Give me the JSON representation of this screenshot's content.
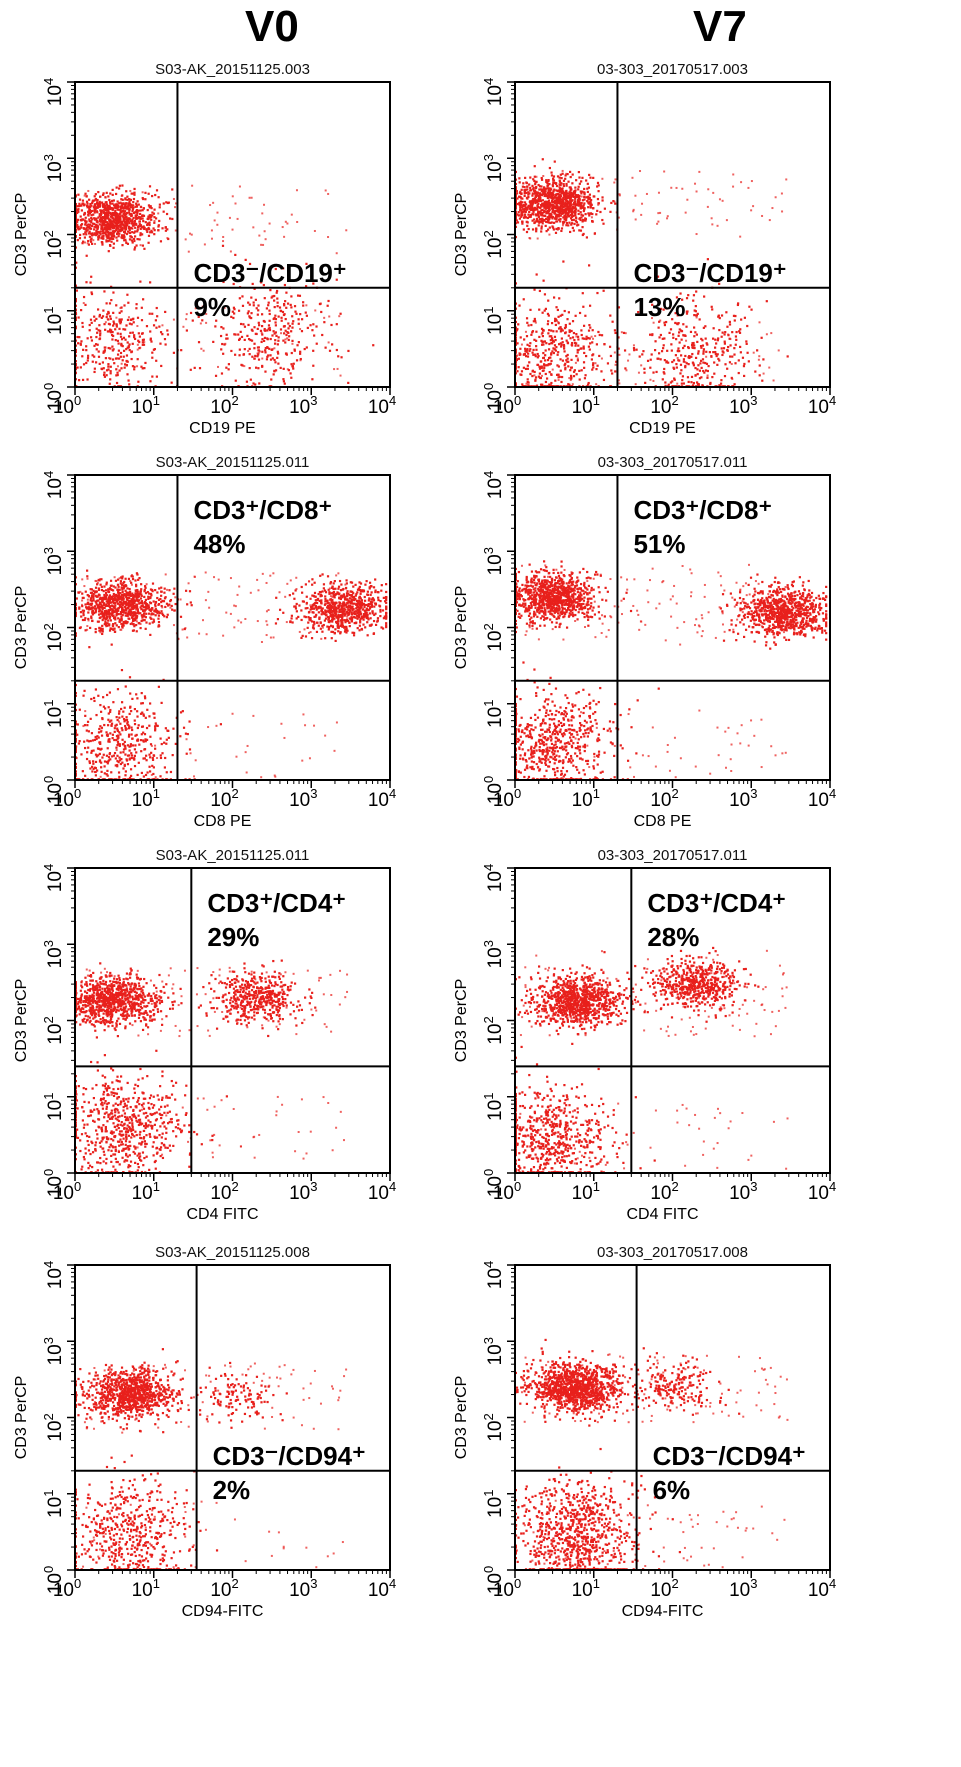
{
  "columns": [
    "V0",
    "V7"
  ],
  "chart_data": [
    {
      "type": "scatter",
      "column": "V0",
      "row": 1,
      "title": "S03-AK_20151125.003",
      "xlabel": "CD19 PE",
      "ylabel": "CD3 PerCP",
      "xscale": "log",
      "yscale": "log",
      "xlim": [
        1,
        10000
      ],
      "ylim": [
        1,
        10000
      ],
      "gate": [
        20,
        20
      ],
      "gate_label": "CD3⁻/CD19⁺",
      "percent": "9%",
      "quadrant": "lower-right",
      "populations": [
        {
          "quadrant": "upper-left",
          "x_center": 3,
          "y_center": 160,
          "events": 900
        },
        {
          "quadrant": "lower-right",
          "x_center": 300,
          "y_center": 5,
          "events": 330
        },
        {
          "quadrant": "lower-left",
          "x_center": 3,
          "y_center": 4,
          "events": 330
        }
      ],
      "color": "#e8201c"
    },
    {
      "type": "scatter",
      "column": "V7",
      "row": 1,
      "title": "03-303_20170517.003",
      "xlabel": "CD19 PE",
      "ylabel": "CD3 PerCP",
      "xscale": "log",
      "yscale": "log",
      "xlim": [
        1,
        10000
      ],
      "ylim": [
        1,
        10000
      ],
      "gate": [
        20,
        20
      ],
      "gate_label": "CD3⁻/CD19⁺",
      "percent": "13%",
      "quadrant": "lower-right",
      "populations": [
        {
          "quadrant": "upper-left",
          "x_center": 3,
          "y_center": 250,
          "events": 1000
        },
        {
          "quadrant": "lower-right",
          "x_center": 200,
          "y_center": 3,
          "events": 350
        },
        {
          "quadrant": "lower-left",
          "x_center": 3,
          "y_center": 3,
          "events": 450
        }
      ],
      "color": "#e8201c"
    },
    {
      "type": "scatter",
      "column": "V0",
      "row": 2,
      "title": "S03-AK_20151125.011",
      "xlabel": "CD8 PE",
      "ylabel": "CD3 PerCP",
      "xscale": "log",
      "yscale": "log",
      "xlim": [
        1,
        10000
      ],
      "ylim": [
        1,
        10000
      ],
      "gate": [
        20,
        20
      ],
      "gate_label": "CD3⁺/CD8⁺",
      "percent": "48%",
      "quadrant": "upper-right",
      "populations": [
        {
          "quadrant": "upper-left",
          "x_center": 4,
          "y_center": 200,
          "events": 800
        },
        {
          "quadrant": "upper-right",
          "x_center": 2500,
          "y_center": 180,
          "events": 700
        },
        {
          "quadrant": "lower-left",
          "x_center": 4,
          "y_center": 3,
          "events": 450
        }
      ],
      "color": "#e8201c"
    },
    {
      "type": "scatter",
      "column": "V7",
      "row": 2,
      "title": "03-303_20170517.011",
      "xlabel": "CD8 PE",
      "ylabel": "CD3 PerCP",
      "xscale": "log",
      "yscale": "log",
      "xlim": [
        1,
        10000
      ],
      "ylim": [
        1,
        10000
      ],
      "gate": [
        20,
        20
      ],
      "gate_label": "CD3⁺/CD8⁺",
      "percent": "51%",
      "quadrant": "upper-right",
      "populations": [
        {
          "quadrant": "upper-left",
          "x_center": 3,
          "y_center": 250,
          "events": 900
        },
        {
          "quadrant": "upper-right",
          "x_center": 2500,
          "y_center": 160,
          "events": 800
        },
        {
          "quadrant": "lower-left",
          "x_center": 3,
          "y_center": 3,
          "events": 600
        }
      ],
      "color": "#e8201c"
    },
    {
      "type": "scatter",
      "column": "V0",
      "row": 3,
      "title": "S03-AK_20151125.011",
      "xlabel": "CD4 FITC",
      "ylabel": "CD3 PerCP",
      "xscale": "log",
      "yscale": "log",
      "xlim": [
        1,
        10000
      ],
      "ylim": [
        1,
        10000
      ],
      "gate": [
        30,
        25
      ],
      "gate_label": "CD3⁺/CD4⁺",
      "percent": "29%",
      "quadrant": "upper-right",
      "populations": [
        {
          "quadrant": "upper-left",
          "x_center": 3,
          "y_center": 180,
          "events": 850
        },
        {
          "quadrant": "upper-right",
          "x_center": 200,
          "y_center": 200,
          "events": 450
        },
        {
          "quadrant": "lower-left",
          "x_center": 4,
          "y_center": 4,
          "events": 600
        }
      ],
      "color": "#e8201c"
    },
    {
      "type": "scatter",
      "column": "V7",
      "row": 3,
      "title": "03-303_20170517.011",
      "xlabel": "CD4 FITC",
      "ylabel": "CD3 PerCP",
      "xscale": "log",
      "yscale": "log",
      "xlim": [
        1,
        10000
      ],
      "ylim": [
        1,
        10000
      ],
      "gate": [
        30,
        25
      ],
      "gate_label": "CD3⁺/CD4⁺",
      "percent": "28%",
      "quadrant": "upper-right",
      "populations": [
        {
          "quadrant": "upper-left",
          "x_center": 6,
          "y_center": 180,
          "events": 900
        },
        {
          "quadrant": "upper-right",
          "x_center": 200,
          "y_center": 300,
          "events": 550
        },
        {
          "quadrant": "lower-left",
          "x_center": 3,
          "y_center": 3,
          "events": 600
        }
      ],
      "color": "#e8201c"
    },
    {
      "type": "scatter",
      "column": "V0",
      "row": 4,
      "title": "S03-AK_20151125.008",
      "xlabel": "CD94-FITC",
      "ylabel": "CD3 PerCP",
      "xscale": "log",
      "yscale": "log",
      "xlim": [
        1,
        10000
      ],
      "ylim": [
        1,
        10000
      ],
      "gate": [
        35,
        20
      ],
      "gate_label": "CD3⁻/CD94⁺",
      "percent": "2%",
      "quadrant": "lower-right",
      "populations": [
        {
          "quadrant": "upper-left",
          "x_center": 5,
          "y_center": 200,
          "events": 900
        },
        {
          "quadrant": "upper-right",
          "x_center": 120,
          "y_center": 180,
          "events": 120
        },
        {
          "quadrant": "lower-left",
          "x_center": 5,
          "y_center": 3,
          "events": 500
        }
      ],
      "color": "#e8201c"
    },
    {
      "type": "scatter",
      "column": "V7",
      "row": 4,
      "title": "03-303_20170517.008",
      "xlabel": "CD94-FITC",
      "ylabel": "CD3 PerCP",
      "xscale": "log",
      "yscale": "log",
      "xlim": [
        1,
        10000
      ],
      "ylim": [
        1,
        10000
      ],
      "gate": [
        35,
        20
      ],
      "gate_label": "CD3⁻/CD94⁺",
      "percent": "6%",
      "quadrant": "lower-right",
      "populations": [
        {
          "quadrant": "upper-left",
          "x_center": 6,
          "y_center": 250,
          "events": 1100
        },
        {
          "quadrant": "upper-right",
          "x_center": 100,
          "y_center": 250,
          "events": 200
        },
        {
          "quadrant": "lower-left",
          "x_center": 6,
          "y_center": 3,
          "events": 800
        }
      ],
      "color": "#e8201c"
    }
  ]
}
